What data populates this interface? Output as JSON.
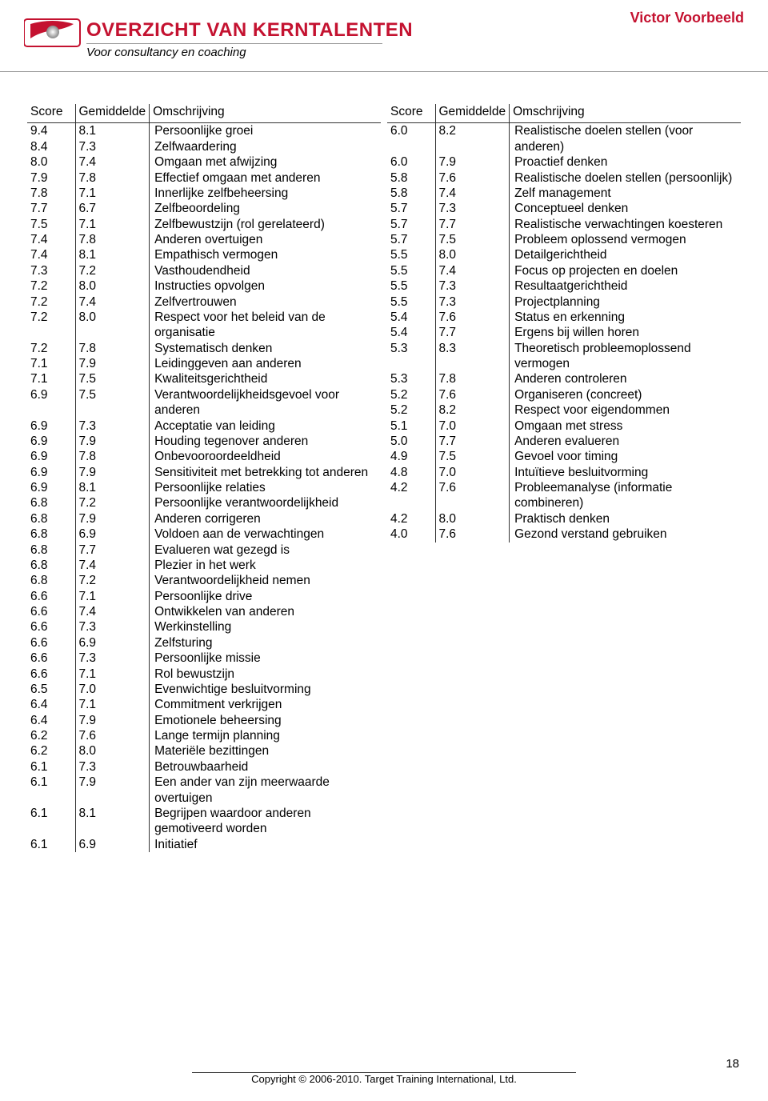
{
  "header": {
    "title": "OVERZICHT VAN KERNTALENTEN",
    "subtitle": "Voor consultancy en coaching",
    "person": "Victor Voorbeeld"
  },
  "columns": {
    "headers": [
      "Score",
      "Gemiddelde",
      "Omschrijving"
    ]
  },
  "left": [
    {
      "s": "9.4",
      "a": "8.1",
      "d": "Persoonlijke groei"
    },
    {
      "s": "8.4",
      "a": "7.3",
      "d": "Zelfwaardering"
    },
    {
      "s": "8.0",
      "a": "7.4",
      "d": "Omgaan met afwijzing"
    },
    {
      "s": "7.9",
      "a": "7.8",
      "d": "Effectief omgaan met anderen"
    },
    {
      "s": "7.8",
      "a": "7.1",
      "d": "Innerlijke zelfbeheersing"
    },
    {
      "s": "7.7",
      "a": "6.7",
      "d": "Zelfbeoordeling"
    },
    {
      "s": "7.5",
      "a": "7.1",
      "d": "Zelfbewustzijn (rol gerelateerd)"
    },
    {
      "s": "7.4",
      "a": "7.8",
      "d": "Anderen overtuigen"
    },
    {
      "s": "7.4",
      "a": "8.1",
      "d": "Empathisch vermogen"
    },
    {
      "s": "7.3",
      "a": "7.2",
      "d": "Vasthoudendheid"
    },
    {
      "s": "7.2",
      "a": "8.0",
      "d": "Instructies opvolgen"
    },
    {
      "s": "7.2",
      "a": "7.4",
      "d": "Zelfvertrouwen"
    },
    {
      "s": "7.2",
      "a": "8.0",
      "d": "Respect voor het beleid van de organisatie"
    },
    {
      "s": "7.2",
      "a": "7.8",
      "d": "Systematisch denken"
    },
    {
      "s": "7.1",
      "a": "7.9",
      "d": "Leidinggeven aan anderen"
    },
    {
      "s": "7.1",
      "a": "7.5",
      "d": "Kwaliteitsgerichtheid"
    },
    {
      "s": "6.9",
      "a": "7.5",
      "d": "Verantwoordelijkheidsgevoel voor anderen"
    },
    {
      "s": "6.9",
      "a": "7.3",
      "d": "Acceptatie van leiding"
    },
    {
      "s": "6.9",
      "a": "7.9",
      "d": "Houding tegenover anderen"
    },
    {
      "s": "6.9",
      "a": "7.8",
      "d": "Onbevooroordeeldheid"
    },
    {
      "s": "6.9",
      "a": "7.9",
      "d": "Sensitiviteit met betrekking tot anderen"
    },
    {
      "s": "6.9",
      "a": "8.1",
      "d": "Persoonlijke relaties"
    },
    {
      "s": "6.8",
      "a": "7.2",
      "d": "Persoonlijke verantwoordelijkheid"
    },
    {
      "s": "6.8",
      "a": "7.9",
      "d": "Anderen corrigeren"
    },
    {
      "s": "6.8",
      "a": "6.9",
      "d": "Voldoen aan de verwachtingen"
    },
    {
      "s": "6.8",
      "a": "7.7",
      "d": "Evalueren wat gezegd is"
    },
    {
      "s": "6.8",
      "a": "7.4",
      "d": "Plezier in het werk"
    },
    {
      "s": "6.8",
      "a": "7.2",
      "d": "Verantwoordelijkheid nemen"
    },
    {
      "s": "6.6",
      "a": "7.1",
      "d": "Persoonlijke drive"
    },
    {
      "s": "6.6",
      "a": "7.4",
      "d": "Ontwikkelen van anderen"
    },
    {
      "s": "6.6",
      "a": "7.3",
      "d": "Werkinstelling"
    },
    {
      "s": "6.6",
      "a": "6.9",
      "d": "Zelfsturing"
    },
    {
      "s": "6.6",
      "a": "7.3",
      "d": "Persoonlijke missie"
    },
    {
      "s": "6.6",
      "a": "7.1",
      "d": "Rol bewustzijn"
    },
    {
      "s": "6.5",
      "a": "7.0",
      "d": "Evenwichtige besluitvorming"
    },
    {
      "s": "6.4",
      "a": "7.1",
      "d": "Commitment verkrijgen"
    },
    {
      "s": "6.4",
      "a": "7.9",
      "d": "Emotionele beheersing"
    },
    {
      "s": "6.2",
      "a": "7.6",
      "d": "Lange termijn planning"
    },
    {
      "s": "6.2",
      "a": "8.0",
      "d": "Materiële bezittingen"
    },
    {
      "s": "6.1",
      "a": "7.3",
      "d": "Betrouwbaarheid"
    },
    {
      "s": "6.1",
      "a": "7.9",
      "d": "Een ander van zijn meerwaarde overtuigen"
    },
    {
      "s": "6.1",
      "a": "8.1",
      "d": "Begrijpen waardoor anderen gemotiveerd worden"
    },
    {
      "s": "6.1",
      "a": "6.9",
      "d": "Initiatief"
    }
  ],
  "right": [
    {
      "s": "6.0",
      "a": "8.2",
      "d": "Realistische doelen stellen (voor anderen)"
    },
    {
      "s": "6.0",
      "a": "7.9",
      "d": "Proactief denken"
    },
    {
      "s": "5.8",
      "a": "7.6",
      "d": "Realistische doelen stellen (persoonlijk)"
    },
    {
      "s": "5.8",
      "a": "7.4",
      "d": "Zelf management"
    },
    {
      "s": "5.7",
      "a": "7.3",
      "d": "Conceptueel denken"
    },
    {
      "s": "5.7",
      "a": "7.7",
      "d": "Realistische verwachtingen koesteren"
    },
    {
      "s": "5.7",
      "a": "7.5",
      "d": "Probleem oplossend vermogen"
    },
    {
      "s": "5.5",
      "a": "8.0",
      "d": "Detailgerichtheid"
    },
    {
      "s": "5.5",
      "a": "7.4",
      "d": "Focus op projecten en doelen"
    },
    {
      "s": "5.5",
      "a": "7.3",
      "d": "Resultaatgerichtheid"
    },
    {
      "s": "5.5",
      "a": "7.3",
      "d": "Projectplanning"
    },
    {
      "s": "5.4",
      "a": "7.6",
      "d": "Status en erkenning"
    },
    {
      "s": "5.4",
      "a": "7.7",
      "d": "Ergens bij willen horen"
    },
    {
      "s": "5.3",
      "a": "8.3",
      "d": "Theoretisch probleemoplossend vermogen"
    },
    {
      "s": "5.3",
      "a": "7.8",
      "d": "Anderen controleren"
    },
    {
      "s": "5.2",
      "a": "7.6",
      "d": "Organiseren (concreet)"
    },
    {
      "s": "5.2",
      "a": "8.2",
      "d": "Respect voor eigendommen"
    },
    {
      "s": "5.1",
      "a": "7.0",
      "d": "Omgaan met stress"
    },
    {
      "s": "5.0",
      "a": "7.7",
      "d": "Anderen evalueren"
    },
    {
      "s": "4.9",
      "a": "7.5",
      "d": "Gevoel voor timing"
    },
    {
      "s": "4.8",
      "a": "7.0",
      "d": "Intuïtieve besluitvorming"
    },
    {
      "s": "4.2",
      "a": "7.6",
      "d": "Probleemanalyse (informatie combineren)"
    },
    {
      "s": "4.2",
      "a": "8.0",
      "d": "Praktisch denken"
    },
    {
      "s": "4.0",
      "a": "7.6",
      "d": "Gezond verstand gebruiken"
    }
  ],
  "footer": {
    "copyright": "Copyright © 2006-2010. Target Training International, Ltd.",
    "page": "18"
  },
  "colors": {
    "brand_red": "#c41230",
    "text": "#000000",
    "rule": "#333333"
  }
}
